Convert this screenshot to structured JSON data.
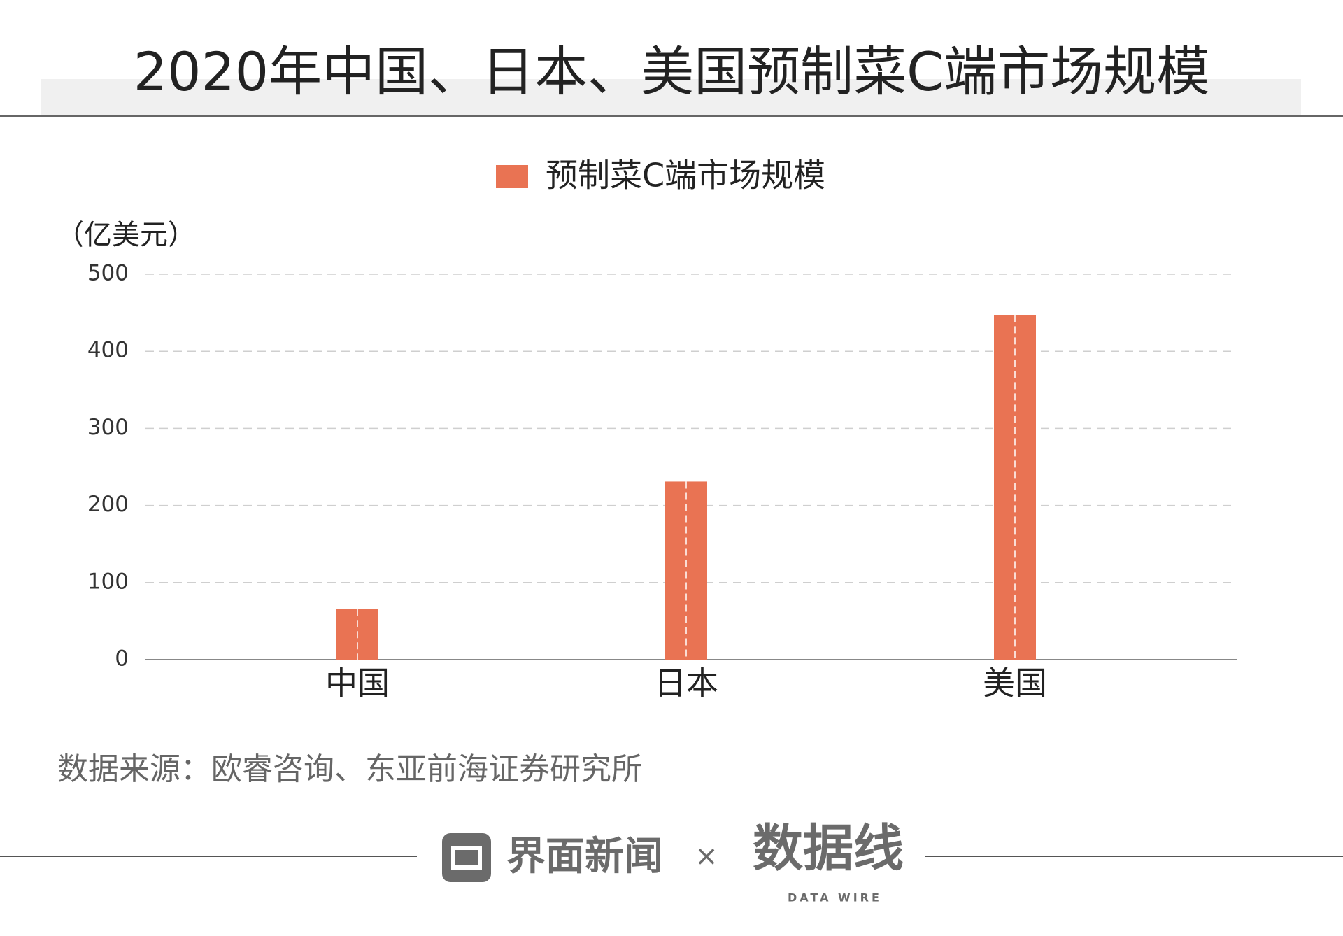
{
  "chart_data": {
    "type": "bar",
    "title": "2020年中国、日本、美国预制菜C端市场规模",
    "y_label": "（亿美元）",
    "categories": [
      "中国",
      "日本",
      "美国"
    ],
    "series": [
      {
        "name": "预制菜C端市场规模",
        "color": "#e97353",
        "values": [
          66,
          231,
          447
        ]
      }
    ],
    "ylim": [
      0,
      500
    ],
    "yticks": [
      0,
      100,
      200,
      300,
      400,
      500
    ],
    "grid": true
  },
  "source": "数据来源：欧睿咨询、东亚前海证券研究所",
  "footer": {
    "brand": "界面新闻",
    "separator": "×",
    "partner": "数据线",
    "partner_sub": "DATA WIRE"
  }
}
